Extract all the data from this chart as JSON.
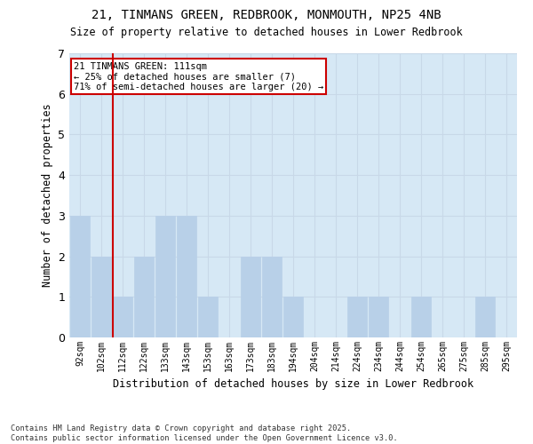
{
  "title_line1": "21, TINMANS GREEN, REDBROOK, MONMOUTH, NP25 4NB",
  "title_line2": "Size of property relative to detached houses in Lower Redbrook",
  "xlabel": "Distribution of detached houses by size in Lower Redbrook",
  "ylabel": "Number of detached properties",
  "footnote": "Contains HM Land Registry data © Crown copyright and database right 2025.\nContains public sector information licensed under the Open Government Licence v3.0.",
  "categories": [
    "92sqm",
    "102sqm",
    "112sqm",
    "122sqm",
    "133sqm",
    "143sqm",
    "153sqm",
    "163sqm",
    "173sqm",
    "183sqm",
    "194sqm",
    "204sqm",
    "214sqm",
    "224sqm",
    "234sqm",
    "244sqm",
    "254sqm",
    "265sqm",
    "275sqm",
    "285sqm",
    "295sqm"
  ],
  "values": [
    3,
    2,
    1,
    2,
    3,
    3,
    1,
    0,
    2,
    2,
    1,
    0,
    0,
    1,
    1,
    0,
    1,
    0,
    0,
    1,
    0
  ],
  "bar_color": "#b8d0e8",
  "bar_edge_color": "#b8d0e8",
  "grid_color": "#c8d8e8",
  "background_color": "#d6e8f5",
  "vline_x_index": 2,
  "vline_color": "#cc0000",
  "annotation_text": "21 TINMANS GREEN: 111sqm\n← 25% of detached houses are smaller (7)\n71% of semi-detached houses are larger (20) →",
  "annotation_box_color": "#cc0000",
  "ylim": [
    0,
    7
  ],
  "yticks": [
    0,
    1,
    2,
    3,
    4,
    5,
    6,
    7
  ]
}
